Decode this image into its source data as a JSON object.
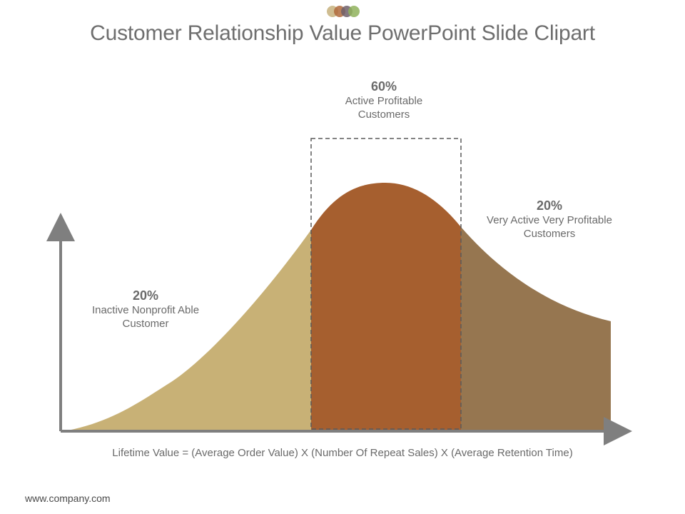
{
  "title": "Customer Relationship Value PowerPoint Slide Clipart",
  "colors": {
    "segment_left": "#c8b176",
    "segment_middle": "#a65f2f",
    "segment_right": "#967650",
    "axis": "#7f7f7f",
    "dashed_box": "#5a5a5a",
    "dot_1": "#c7b17e",
    "dot_2": "#b06a3c",
    "dot_3": "#6f5f6a",
    "dot_4": "#8fb25c"
  },
  "segments": {
    "left": {
      "percent": "20%",
      "description": "Inactive Nonprofit Able Customer"
    },
    "middle": {
      "percent": "60%",
      "description": "Active Profitable Customers"
    },
    "right": {
      "percent": "20%",
      "description": "Very Active Very Profitable Customers"
    }
  },
  "formula": "Lifetime Value = (Average Order Value) X (Number Of Repeat Sales) X (Average Retention Time)",
  "footer": "www.company.com"
}
